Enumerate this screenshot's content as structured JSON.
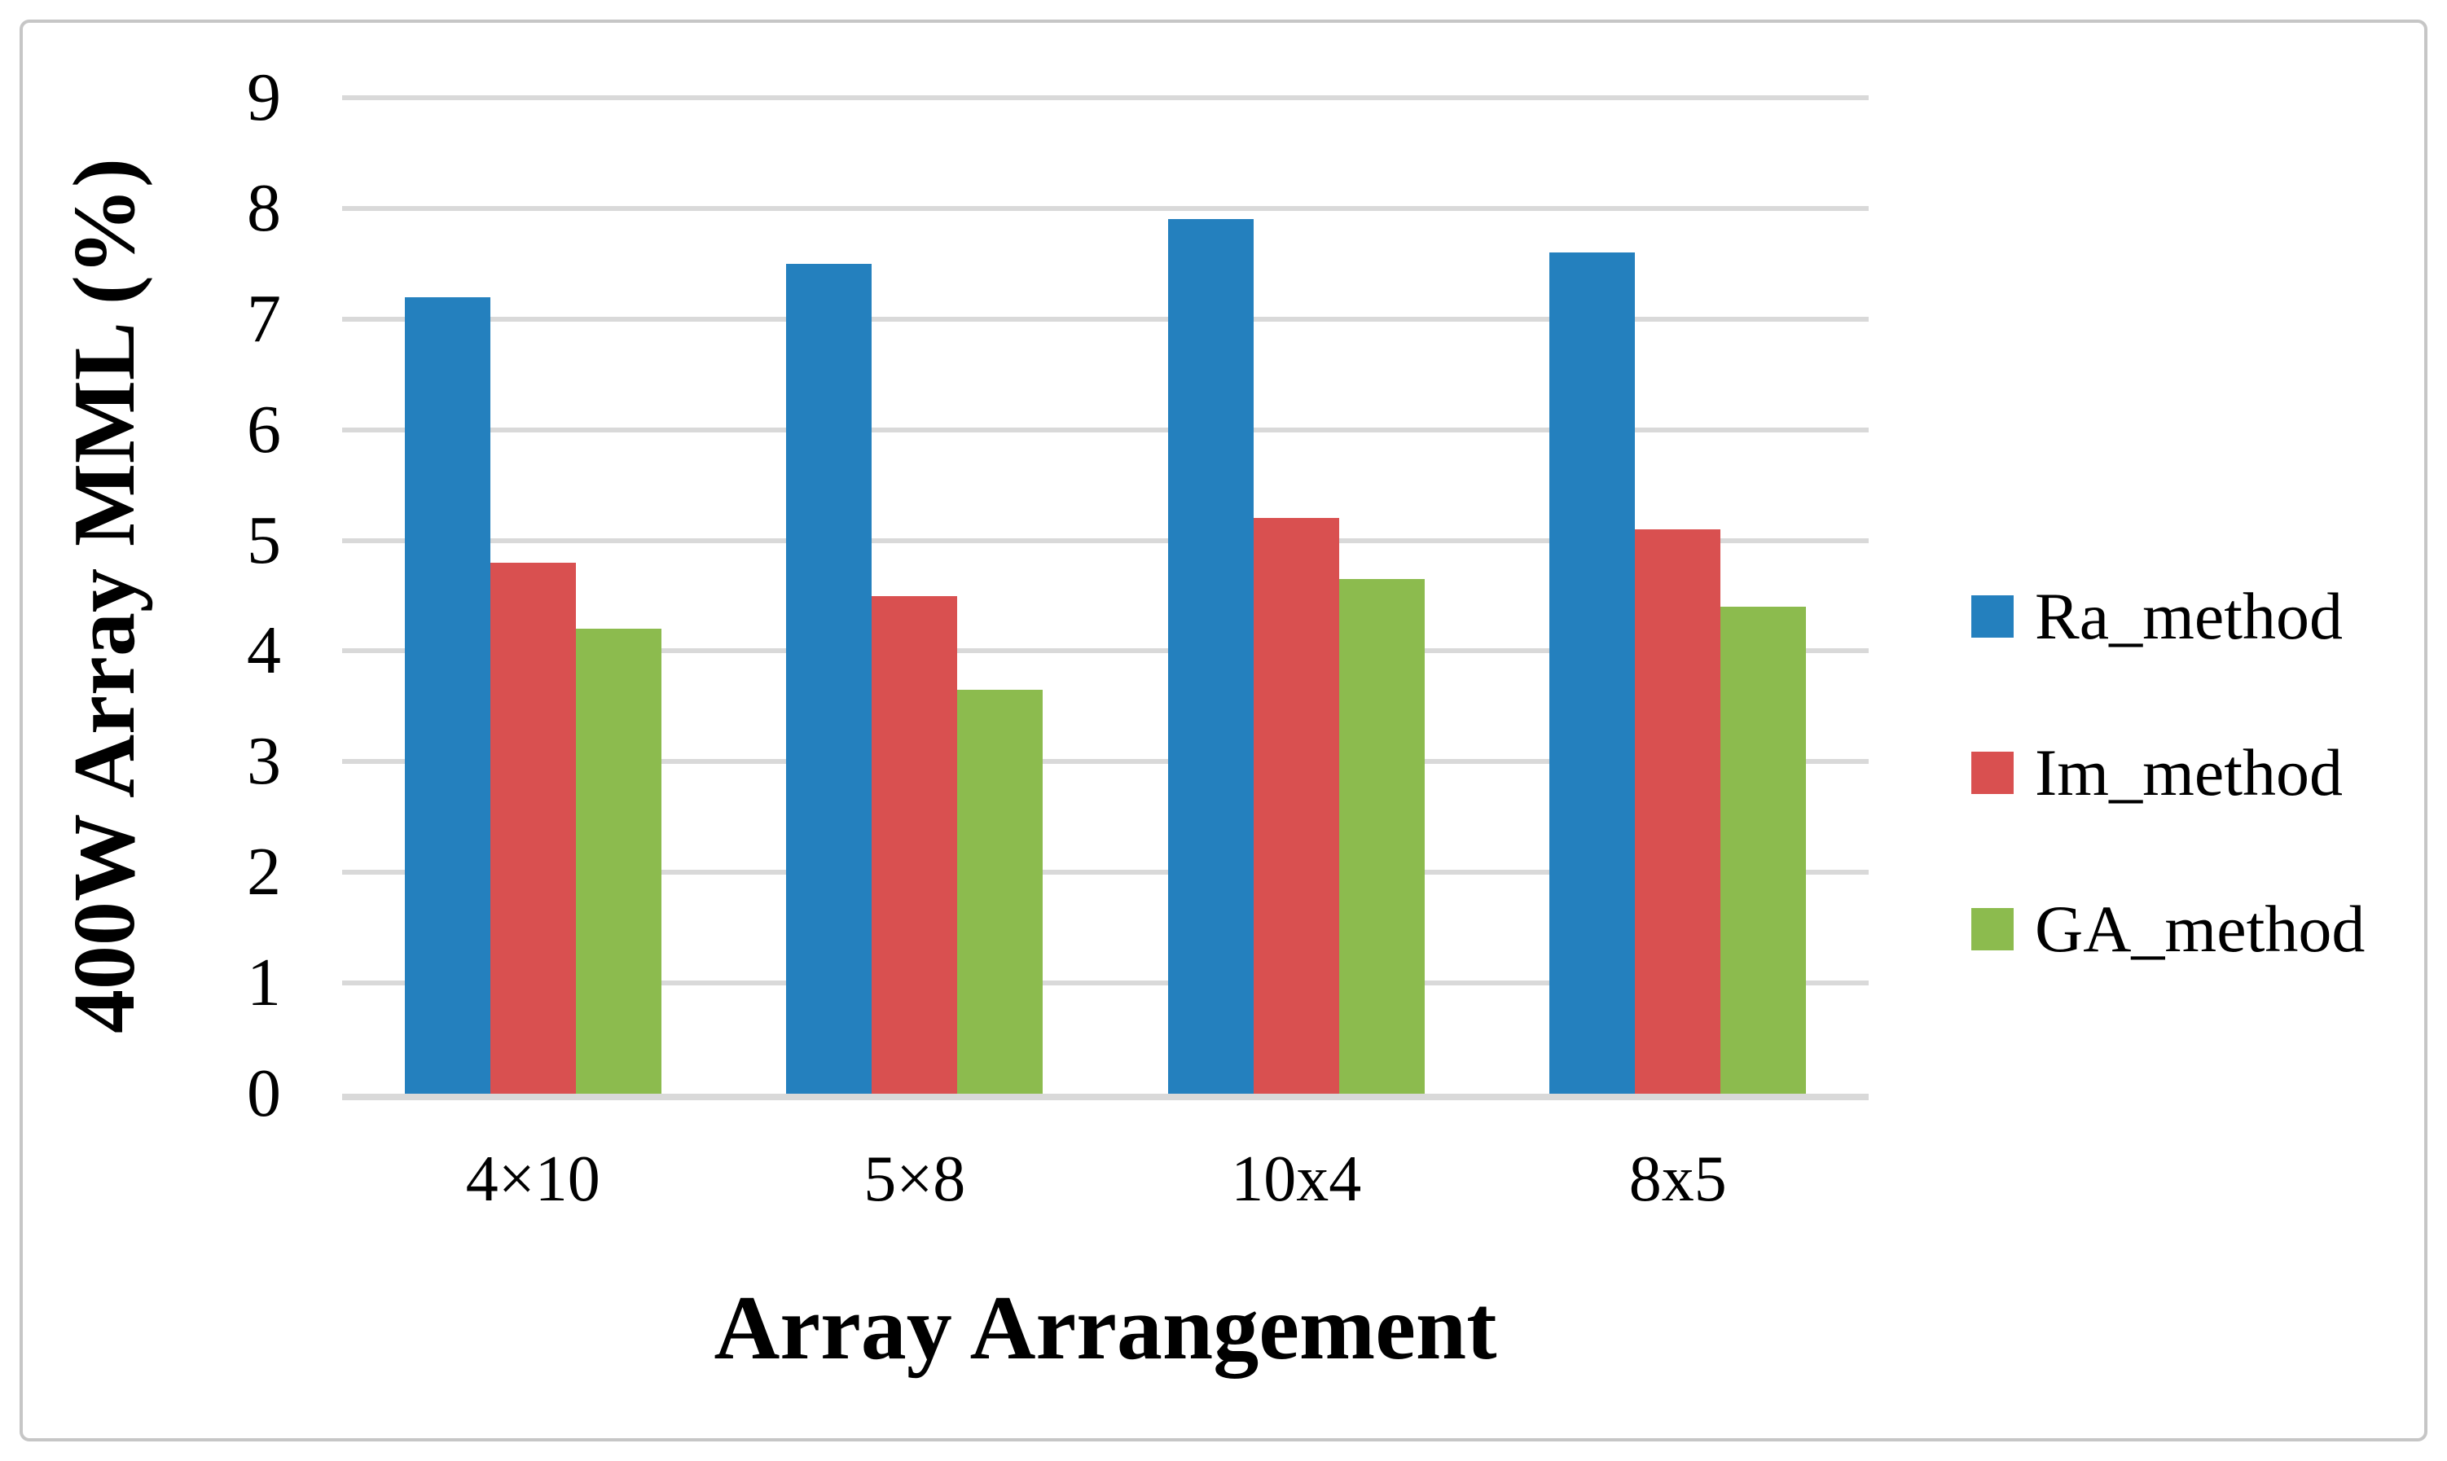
{
  "chart_data": {
    "type": "bar",
    "title": "",
    "xlabel": "Array Arrangement",
    "ylabel": "400W Array MML (%)",
    "categories": [
      "4×10",
      "5×8",
      "10x4",
      "8x5"
    ],
    "series": [
      {
        "name": "Ra_method",
        "color": "#2480be",
        "values": [
          7.2,
          7.5,
          7.9,
          7.6
        ]
      },
      {
        "name": "Im_method",
        "color": "#d95050",
        "values": [
          4.8,
          4.5,
          5.2,
          5.1
        ]
      },
      {
        "name": "GA_method",
        "color": "#8cbb4e",
        "values": [
          4.2,
          3.65,
          4.65,
          4.4
        ]
      }
    ],
    "ylim": [
      0,
      9
    ],
    "yticks": [
      0,
      1,
      2,
      3,
      4,
      5,
      6,
      7,
      8,
      9
    ],
    "grid": true,
    "legend_position": "right",
    "gridline_color": "#d9d9d9",
    "frame_border_color": "#c6c6c6"
  }
}
